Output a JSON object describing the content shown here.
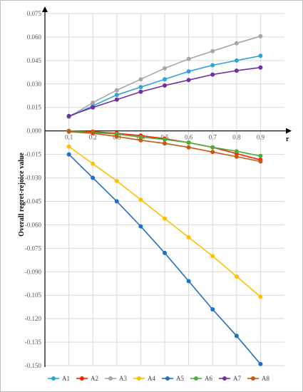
{
  "chart_data": {
    "type": "line",
    "title": "",
    "xlabel": "r",
    "ylabel": "Overall regret-rejoice value",
    "x": [
      0.1,
      0.2,
      0.3,
      0.4,
      0.5,
      0.6,
      0.7,
      0.8,
      0.9
    ],
    "x_tick_labels": [
      "0.1",
      "0.2",
      "0.3",
      "0.4",
      "0.5",
      "0.6",
      "0.7",
      "0.8",
      "0.9"
    ],
    "xlim": [
      0,
      1.0
    ],
    "ylim": [
      -0.15,
      0.075
    ],
    "y_ticks": [
      0.075,
      0.06,
      0.045,
      0.03,
      0.015,
      0.0,
      -0.015,
      -0.03,
      -0.045,
      -0.06,
      -0.075,
      -0.09,
      -0.105,
      -0.12,
      -0.135,
      -0.15
    ],
    "y_tick_labels": [
      "0.075",
      "0.060",
      "0.045",
      "0.030",
      "0.015",
      "0.000",
      "-0.015",
      "-0.030",
      "-0.045",
      "-0.060",
      "-0.075",
      "-0.090",
      "-0.105",
      "-0.120",
      "-0.135",
      "-0.150"
    ],
    "grid": true,
    "legend_position": "bottom",
    "series": [
      {
        "name": "A1",
        "color": "#2ea3dc",
        "values": [
          0.009,
          0.016,
          0.023,
          0.028,
          0.033,
          0.038,
          0.042,
          0.045,
          0.048
        ]
      },
      {
        "name": "A2",
        "color": "#ff1f00",
        "values": [
          0.0,
          -0.0005,
          -0.0015,
          -0.003,
          -0.005,
          -0.0075,
          -0.0105,
          -0.0145,
          -0.0185
        ]
      },
      {
        "name": "A3",
        "color": "#a6a6a6",
        "values": [
          0.009,
          0.018,
          0.026,
          0.033,
          0.04,
          0.046,
          0.051,
          0.056,
          0.0605
        ]
      },
      {
        "name": "A4",
        "color": "#ffc000",
        "values": [
          -0.01,
          -0.021,
          -0.032,
          -0.044,
          -0.056,
          -0.068,
          -0.08,
          -0.093,
          -0.106
        ]
      },
      {
        "name": "A5",
        "color": "#1f6fc5",
        "values": [
          -0.015,
          -0.03,
          -0.045,
          -0.061,
          -0.078,
          -0.096,
          -0.114,
          -0.131,
          -0.149
        ]
      },
      {
        "name": "A6",
        "color": "#4caf3d",
        "values": [
          0.0,
          -0.001,
          -0.002,
          -0.004,
          -0.0055,
          -0.0075,
          -0.0105,
          -0.013,
          -0.016
        ]
      },
      {
        "name": "A7",
        "color": "#7030a0",
        "values": [
          0.0095,
          0.015,
          0.02,
          0.025,
          0.029,
          0.0325,
          0.036,
          0.0385,
          0.0405
        ]
      },
      {
        "name": "A8",
        "color": "#c55a11",
        "values": [
          -0.0005,
          -0.0015,
          -0.0035,
          -0.006,
          -0.008,
          -0.0105,
          -0.0135,
          -0.0165,
          -0.0195
        ]
      }
    ]
  }
}
